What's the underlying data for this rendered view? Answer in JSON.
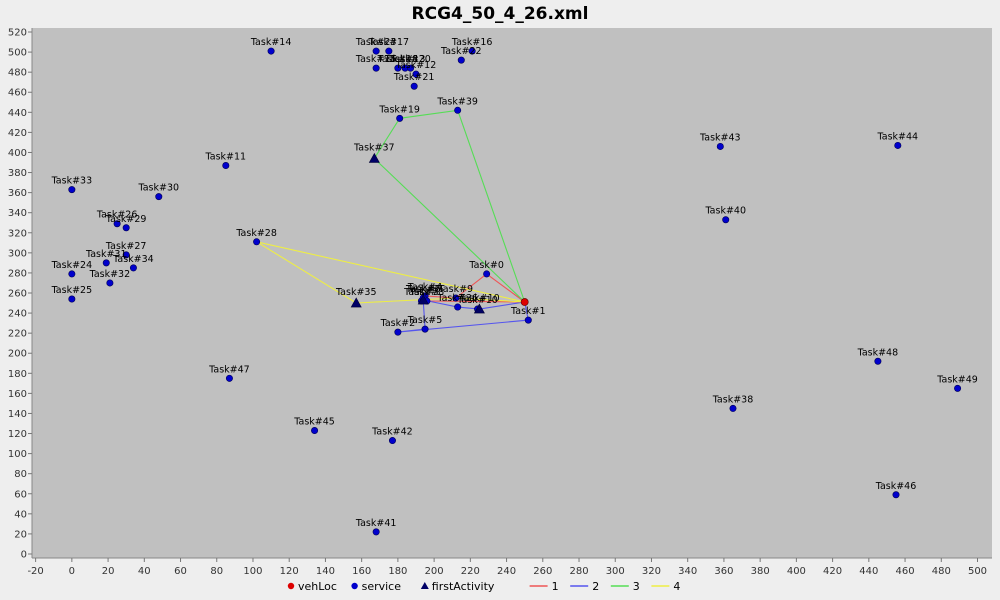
{
  "chart_data": {
    "type": "scatter",
    "title": "RCG4_50_4_26.xml",
    "xlim": [
      -22,
      508
    ],
    "ylim": [
      -4,
      524
    ],
    "xticks": [
      -20,
      0,
      20,
      40,
      60,
      80,
      100,
      120,
      140,
      160,
      180,
      200,
      220,
      240,
      260,
      280,
      300,
      320,
      340,
      360,
      380,
      400,
      420,
      440,
      460,
      480,
      500
    ],
    "yticks": [
      0,
      20,
      40,
      60,
      80,
      100,
      120,
      140,
      160,
      180,
      200,
      220,
      240,
      260,
      280,
      300,
      320,
      340,
      360,
      380,
      400,
      420,
      440,
      460,
      480,
      500,
      520
    ],
    "legend_position": "bottom",
    "colors": {
      "vehLoc": "#dd0000",
      "service": "#0000cc",
      "firstActivity": "#000066",
      "route1": "#ee5555",
      "route2": "#5555ee",
      "route3": "#55dd55",
      "route4": "#eeee44"
    },
    "legend": [
      {
        "label": "vehLoc",
        "kind": "dot",
        "color": "#dd0000"
      },
      {
        "label": "service",
        "kind": "dot",
        "color": "#0000cc"
      },
      {
        "label": "firstActivity",
        "kind": "tri",
        "color": "#000066"
      },
      {
        "label": "1",
        "kind": "line",
        "color": "#ee5555"
      },
      {
        "label": "2",
        "kind": "line",
        "color": "#5555ee"
      },
      {
        "label": "3",
        "kind": "line",
        "color": "#55dd55"
      },
      {
        "label": "4",
        "kind": "line",
        "color": "#eeee44"
      }
    ],
    "vehLoc": {
      "x": 250,
      "y": 251
    },
    "services": [
      {
        "label": "Task#0",
        "x": 229,
        "y": 279
      },
      {
        "label": "Task#1",
        "x": 252,
        "y": 233
      },
      {
        "label": "Task#2",
        "x": 180,
        "y": 221
      },
      {
        "label": "Task#3",
        "x": 193,
        "y": 252
      },
      {
        "label": "Task#4",
        "x": 195,
        "y": 257
      },
      {
        "label": "Task#5",
        "x": 195,
        "y": 224
      },
      {
        "label": "Task#7",
        "x": 194,
        "y": 255
      },
      {
        "label": "Task#8",
        "x": 196,
        "y": 252
      },
      {
        "label": "Task#9",
        "x": 212,
        "y": 255
      },
      {
        "label": "Task#10",
        "x": 224,
        "y": 244
      },
      {
        "label": "Task#11",
        "x": 85,
        "y": 387
      },
      {
        "label": "Task#12",
        "x": 190,
        "y": 478
      },
      {
        "label": "Task#13",
        "x": 184,
        "y": 484
      },
      {
        "label": "Task#14",
        "x": 110,
        "y": 501
      },
      {
        "label": "Task#15",
        "x": 168,
        "y": 484
      },
      {
        "label": "Task#16",
        "x": 221,
        "y": 501
      },
      {
        "label": "Task#17",
        "x": 175,
        "y": 501
      },
      {
        "label": "Task#18",
        "x": 180,
        "y": 484
      },
      {
        "label": "Task#19",
        "x": 181,
        "y": 434
      },
      {
        "label": "Task#20",
        "x": 187,
        "y": 484
      },
      {
        "label": "Task#21",
        "x": 189,
        "y": 466
      },
      {
        "label": "Task#22",
        "x": 215,
        "y": 492
      },
      {
        "label": "Task#23",
        "x": 168,
        "y": 501
      },
      {
        "label": "Task#24",
        "x": 0,
        "y": 279
      },
      {
        "label": "Task#25",
        "x": 0,
        "y": 254
      },
      {
        "label": "Task#26",
        "x": 25,
        "y": 329
      },
      {
        "label": "Task#27",
        "x": 30,
        "y": 298
      },
      {
        "label": "Task#28",
        "x": 102,
        "y": 311
      },
      {
        "label": "Task#29",
        "x": 30,
        "y": 325
      },
      {
        "label": "Task#30",
        "x": 48,
        "y": 356
      },
      {
        "label": "Task#31",
        "x": 19,
        "y": 290
      },
      {
        "label": "Task#32",
        "x": 21,
        "y": 270
      },
      {
        "label": "Task#33",
        "x": 0,
        "y": 363
      },
      {
        "label": "Task#34",
        "x": 34,
        "y": 285
      },
      {
        "label": "Task#36",
        "x": 213,
        "y": 246
      },
      {
        "label": "Task#38",
        "x": 365,
        "y": 145
      },
      {
        "label": "Task#39",
        "x": 213,
        "y": 442
      },
      {
        "label": "Task#40",
        "x": 361,
        "y": 333
      },
      {
        "label": "Task#41",
        "x": 168,
        "y": 22
      },
      {
        "label": "Task#42",
        "x": 177,
        "y": 113
      },
      {
        "label": "Task#43",
        "x": 358,
        "y": 406
      },
      {
        "label": "Task#44",
        "x": 456,
        "y": 407
      },
      {
        "label": "Task#45",
        "x": 134,
        "y": 123
      },
      {
        "label": "Task#46",
        "x": 455,
        "y": 59
      },
      {
        "label": "Task#47",
        "x": 87,
        "y": 175
      },
      {
        "label": "Task#48",
        "x": 445,
        "y": 192
      },
      {
        "label": "Task#49",
        "x": 489,
        "y": 165
      }
    ],
    "firstActivities": [
      {
        "label": "Task#6",
        "x": 194,
        "y": 253
      },
      {
        "label": "Task#35",
        "x": 157,
        "y": 250
      },
      {
        "label": "Task#37",
        "x": 167,
        "y": 394
      },
      {
        "label": "Task#10",
        "x": 225,
        "y": 244
      }
    ],
    "routes": [
      {
        "name": "1",
        "color": "#ee5555",
        "points": [
          [
            250,
            251
          ],
          [
            229,
            279
          ],
          [
            212,
            255
          ],
          [
            195,
            257
          ],
          [
            193,
            252
          ],
          [
            194,
            253
          ],
          [
            196,
            252
          ],
          [
            250,
            251
          ]
        ]
      },
      {
        "name": "2",
        "color": "#5555ee",
        "points": [
          [
            250,
            251
          ],
          [
            225,
            244
          ],
          [
            213,
            246
          ],
          [
            194,
            253
          ],
          [
            195,
            224
          ],
          [
            180,
            221
          ],
          [
            252,
            233
          ],
          [
            250,
            251
          ]
        ]
      },
      {
        "name": "3",
        "color": "#55dd55",
        "points": [
          [
            250,
            251
          ],
          [
            167,
            394
          ],
          [
            181,
            434
          ],
          [
            213,
            442
          ],
          [
            250,
            251
          ]
        ]
      },
      {
        "name": "4",
        "color": "#eeee44",
        "points": [
          [
            250,
            251
          ],
          [
            102,
            311
          ],
          [
            157,
            250
          ],
          [
            212,
            255
          ],
          [
            250,
            251
          ]
        ]
      }
    ]
  }
}
